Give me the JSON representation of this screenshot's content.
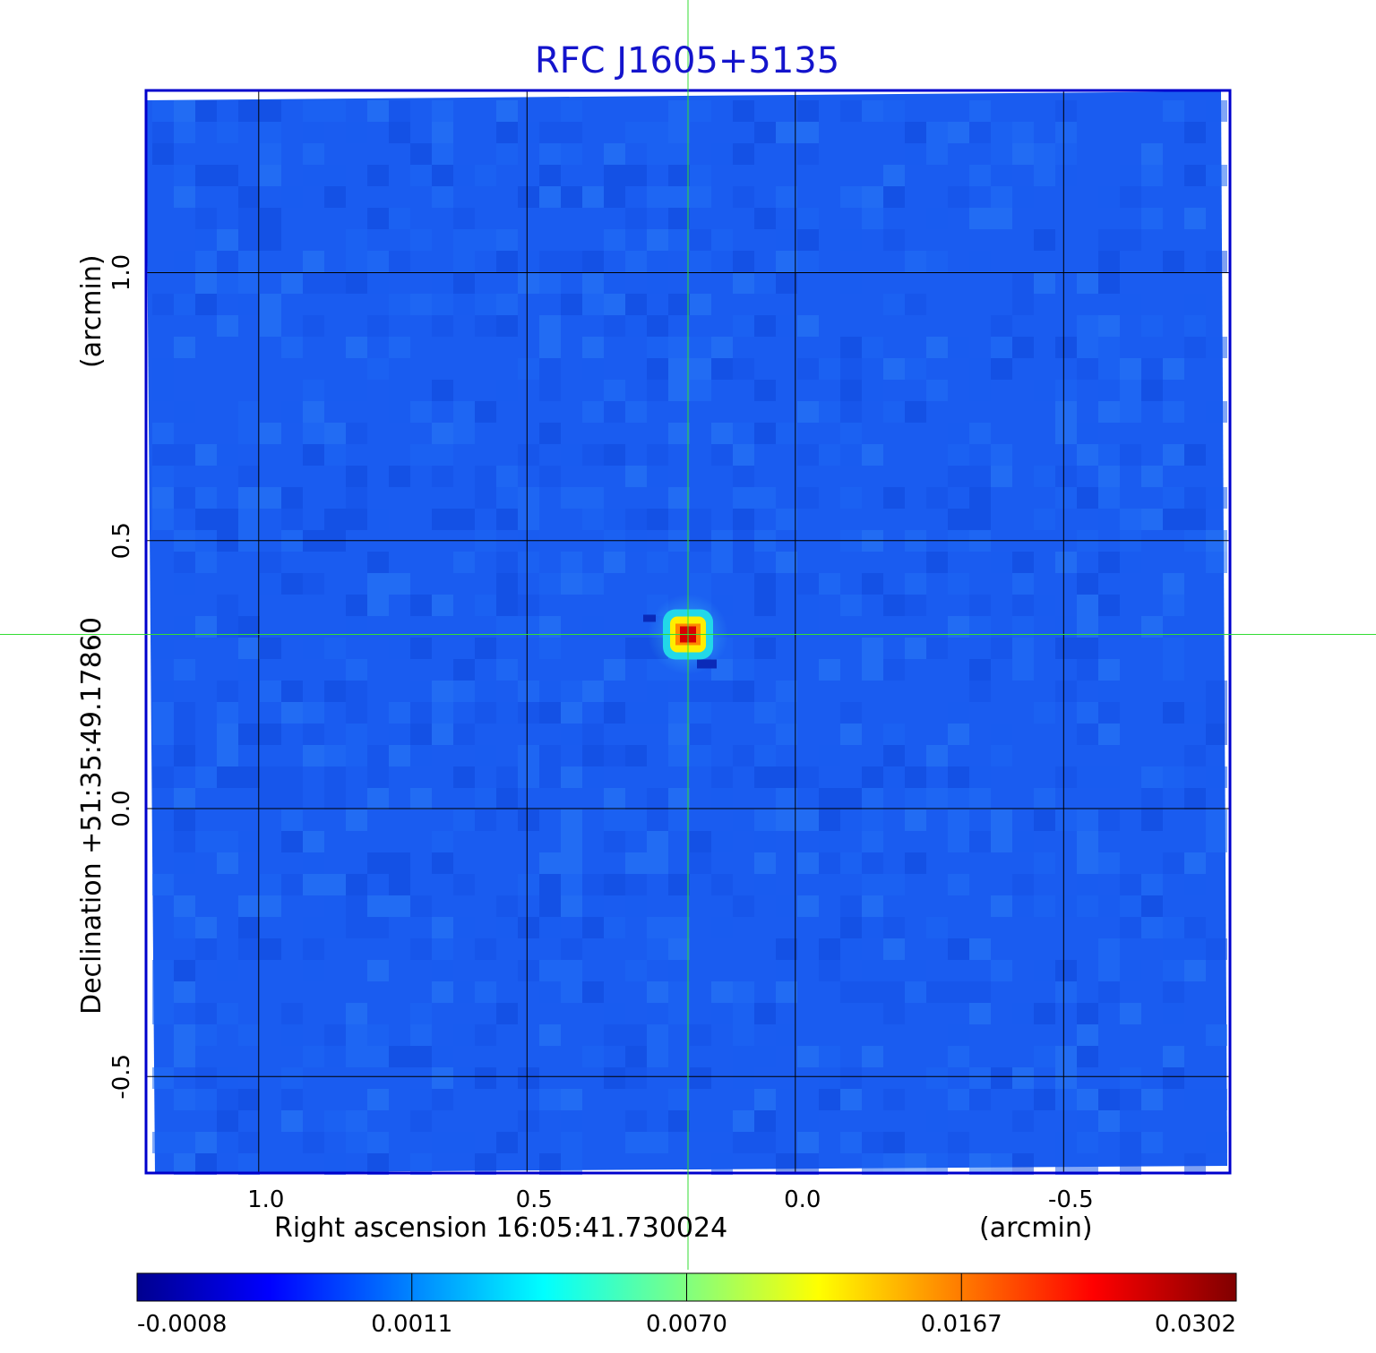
{
  "chart_data": {
    "type": "heatmap",
    "title": "RFC J1605+5135",
    "xlabel": "Right ascension  16:05:41.730024",
    "xunit": "(arcmin)",
    "ylabel": "Declination  +51:35:49.17860",
    "yunit": "(arcmin)",
    "x_range": [
      1.21,
      -0.81
    ],
    "y_range": [
      -0.68,
      1.34
    ],
    "x_ticks": [
      {
        "value": 1.0,
        "label": "1.0"
      },
      {
        "value": 0.5,
        "label": "0.5"
      },
      {
        "value": 0.0,
        "label": "0.0"
      },
      {
        "value": -0.5,
        "label": "-0.5"
      }
    ],
    "y_ticks": [
      {
        "value": 1.0,
        "label": "1.0"
      },
      {
        "value": 0.5,
        "label": "0.5"
      },
      {
        "value": 0.0,
        "label": "0.0"
      },
      {
        "value": -0.5,
        "label": "-0.5"
      }
    ],
    "grid": true,
    "crosshair": {
      "x": 0.2,
      "y": 0.325
    },
    "source": {
      "x": 0.2,
      "y": 0.325,
      "peak": 0.0302
    },
    "colorbar": {
      "labels": [
        "-0.0008",
        "0.0011",
        "0.0070",
        "0.0167",
        "0.0302"
      ],
      "values": [
        -0.0008,
        0.0011,
        0.007,
        0.0167,
        0.0302
      ],
      "colormap": "jet"
    },
    "colors": {
      "title": "#1414cc",
      "frame": "#0000cc",
      "grid": "#000000",
      "crosshair": "#33dd33",
      "background_field": "#1a5cf0"
    }
  }
}
